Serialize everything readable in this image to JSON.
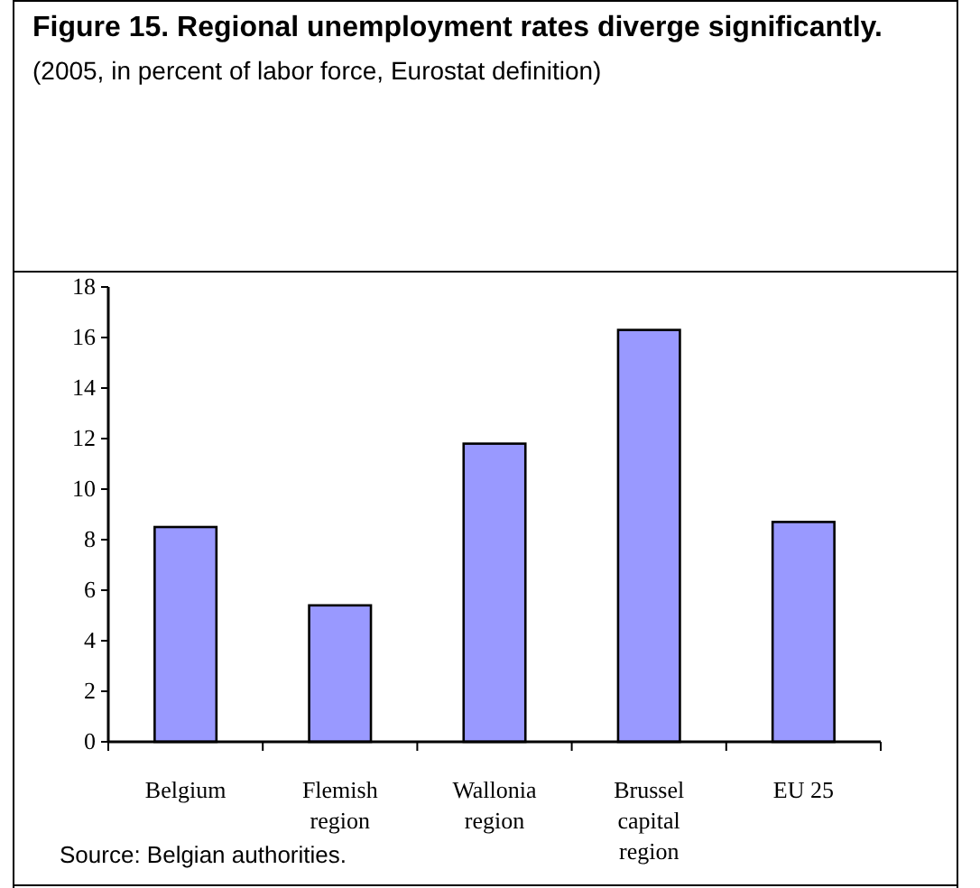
{
  "chart_data": {
    "type": "bar",
    "title": "Figure 15. Regional unemployment rates diverge significantly.",
    "subtitle": "(2005, in percent of labor force, Eurostat definition)",
    "categories": [
      "Belgium",
      "Flemish region",
      "Wallonia region",
      "Brussel capital region",
      "EU 25"
    ],
    "values": [
      8.5,
      5.4,
      11.8,
      16.3,
      8.7
    ],
    "color": "#9999ff",
    "ylim": [
      0,
      18
    ],
    "yticks": [
      0,
      2,
      4,
      6,
      8,
      10,
      12,
      14,
      16,
      18
    ],
    "grid": false,
    "annotations": [
      "Source: Belgian authorities."
    ]
  }
}
